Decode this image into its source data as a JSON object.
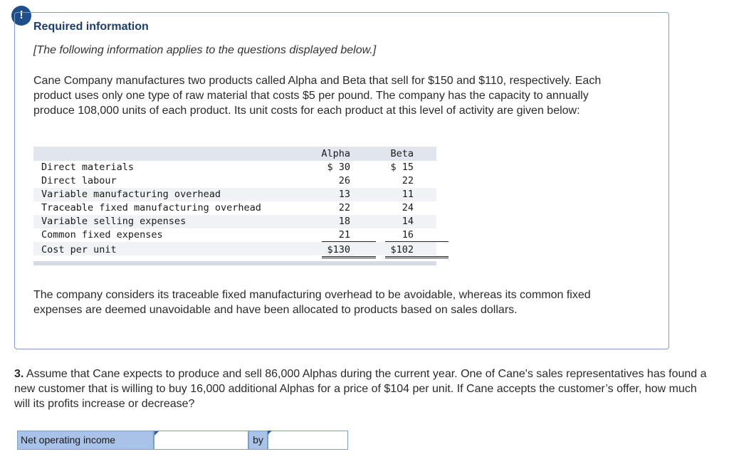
{
  "alert_icon": "!",
  "info": {
    "heading": "Required information",
    "note": "[The following information applies to the questions displayed below.]",
    "paragraph1": "Cane Company manufactures two products called Alpha and Beta that sell for $150 and $110, respectively. Each product uses only one type of raw material that costs $5 per pound. The company has the capacity to annually produce 108,000 units of each product. Its unit costs for each product at this level of activity are given below:",
    "paragraph2": "The company considers its traceable fixed manufacturing overhead to be avoidable, whereas its common fixed expenses are deemed unavoidable and have been allocated to products based on sales dollars."
  },
  "cost_table": {
    "headers": [
      "Alpha",
      "Beta"
    ],
    "rows": [
      {
        "label": "Direct materials",
        "alpha": "$ 30",
        "beta": "$ 15"
      },
      {
        "label": "Direct labour",
        "alpha": "26",
        "beta": "22"
      },
      {
        "label": "Variable manufacturing overhead",
        "alpha": "13",
        "beta": "11"
      },
      {
        "label": "Traceable fixed manufacturing overhead",
        "alpha": "22",
        "beta": "24"
      },
      {
        "label": "Variable selling expenses",
        "alpha": "18",
        "beta": "14"
      },
      {
        "label": "Common fixed expenses",
        "alpha": "21",
        "beta": "16"
      },
      {
        "label": "Cost per unit",
        "alpha": "$130",
        "beta": "$102"
      }
    ]
  },
  "question": {
    "number": "3.",
    "text": "Assume that Cane expects to produce and sell 86,000 Alphas during the current year. One of Cane's sales representatives has found a new customer that is willing to buy 16,000 additional Alphas for a price of $104 per unit. If Cane accepts the customer’s offer, how much will its profits increase or decrease?"
  },
  "answer": {
    "label": "Net operating income",
    "selected_value": "",
    "by_label": "by",
    "amount_value": ""
  }
}
